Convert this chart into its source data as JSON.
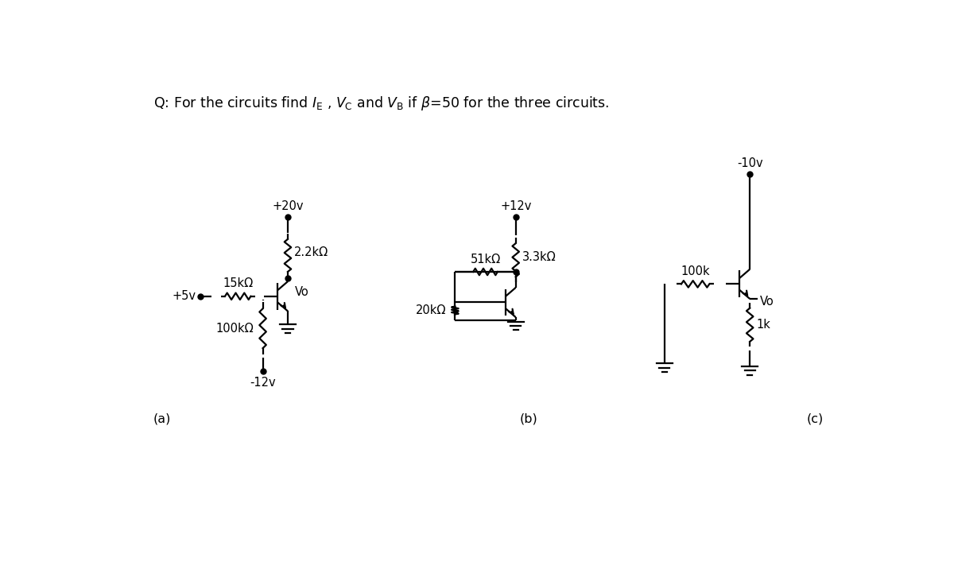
{
  "bg_color": "#ffffff",
  "line_color": "#000000",
  "title": "Q: For the circuits find I_E , V_C and V_B if β=50 for the three circuits.",
  "circuit_a": {
    "vcc_label": "+20v",
    "v1_label": "+5v",
    "v2_label": "-12v",
    "r1_label": "15kΩ",
    "r2_label": "2.2kΩ",
    "r3_label": "100kΩ",
    "vo_label": "Vo",
    "sub_label": "(a)"
  },
  "circuit_b": {
    "vcc_label": "+12v",
    "r1_label": "51kΩ",
    "r2_label": "3.3kΩ",
    "r3_label": "20kΩ",
    "sub_label": "(b)"
  },
  "circuit_c": {
    "vcc_label": "-10v",
    "r1_label": "100k",
    "r2_label": "1k",
    "vo_label": "Vo",
    "sub_label": "(c)"
  }
}
